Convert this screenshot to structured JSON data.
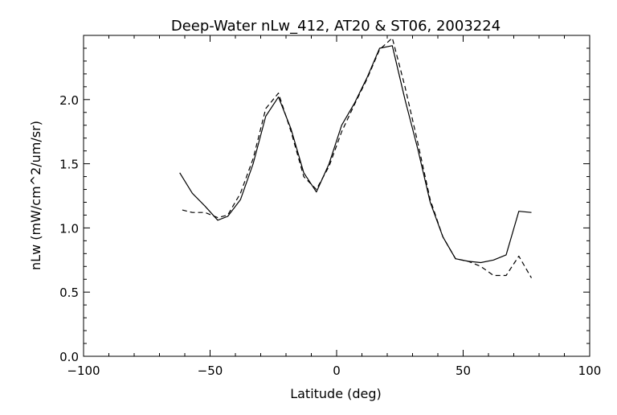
{
  "chart_data": {
    "type": "line",
    "title": "Deep-Water nLw_412, AT20 & ST06, 2003224",
    "xlabel": "Latitude (deg)",
    "ylabel": "nLw (mW/cm^2/um/sr)",
    "xlim": [
      -100,
      100
    ],
    "ylim": [
      0,
      2.5
    ],
    "xticks": [
      -100,
      -50,
      0,
      50,
      100
    ],
    "xtick_labels": [
      "−100",
      "−50",
      "0",
      "50",
      "100"
    ],
    "yticks": [
      0,
      0.5,
      1,
      1.5,
      2
    ],
    "ytick_labels": [
      "0.0",
      "0.5",
      "1.0",
      "1.5",
      "2.0"
    ],
    "grid": false,
    "series": [
      {
        "style": "solid",
        "x": [
          -62,
          -57,
          -52,
          -47,
          -43,
          -38,
          -33,
          -28,
          -23,
          -18,
          -13,
          -8,
          -3,
          2,
          7,
          12,
          17,
          22,
          27,
          32,
          37,
          42,
          47,
          52,
          57,
          62,
          67,
          72,
          77
        ],
        "y": [
          1.43,
          1.27,
          1.17,
          1.06,
          1.09,
          1.22,
          1.5,
          1.87,
          2.02,
          1.77,
          1.43,
          1.28,
          1.5,
          1.8,
          1.97,
          2.17,
          2.4,
          2.42,
          2.0,
          1.62,
          1.2,
          0.93,
          0.76,
          0.74,
          0.73,
          0.75,
          0.79,
          1.13,
          1.12
        ]
      },
      {
        "style": "dashed",
        "x": [
          -61,
          -57,
          -52,
          -47,
          -43,
          -38,
          -33,
          -28,
          -23,
          -18,
          -13,
          -8,
          -3,
          2,
          7,
          12,
          17,
          22,
          27,
          32,
          37,
          42,
          47,
          52,
          57,
          62,
          67,
          72,
          77
        ],
        "y": [
          1.14,
          1.12,
          1.12,
          1.08,
          1.1,
          1.27,
          1.54,
          1.93,
          2.05,
          1.75,
          1.4,
          1.3,
          1.48,
          1.75,
          1.96,
          2.16,
          2.39,
          2.48,
          2.1,
          1.67,
          1.22,
          0.93,
          0.76,
          0.74,
          0.7,
          0.63,
          0.63,
          0.78,
          0.61
        ]
      }
    ]
  }
}
